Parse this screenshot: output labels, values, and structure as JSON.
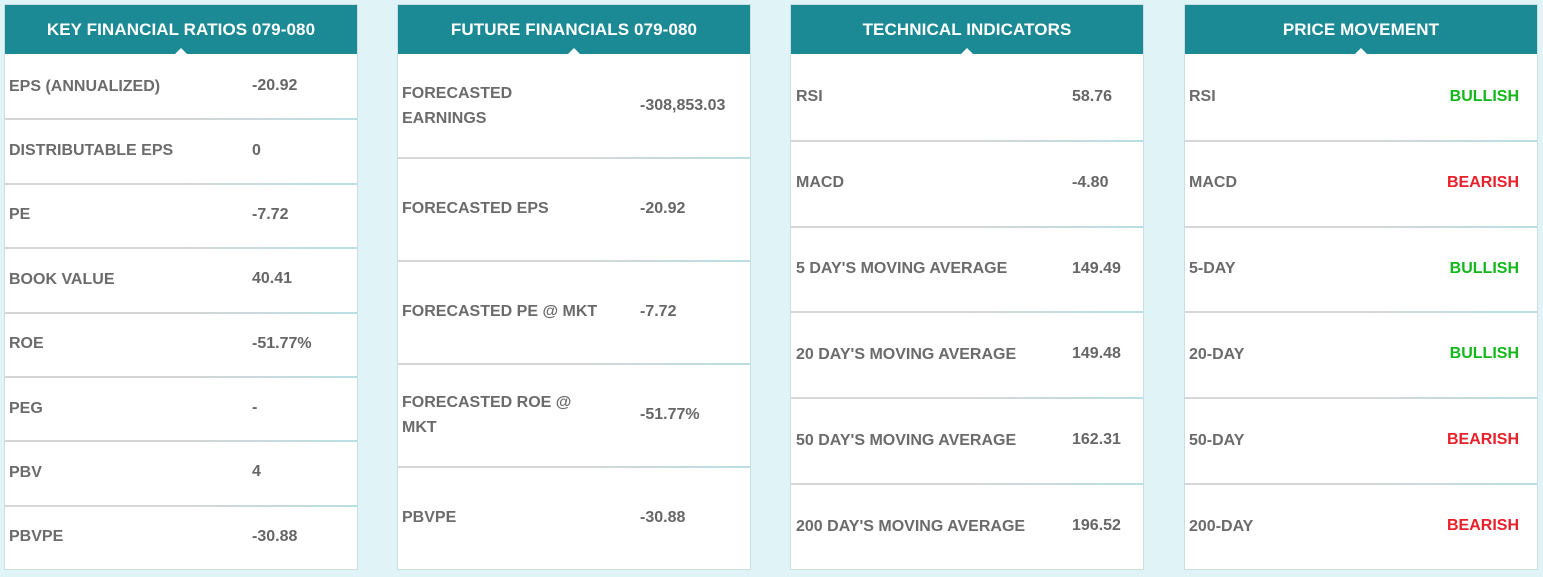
{
  "colors": {
    "header_bg": "#1c8a95",
    "bullish": "#12b81a",
    "bearish": "#e8202a",
    "page_bg": "#e0f3f6"
  },
  "key_ratios": {
    "title": "KEY FINANCIAL RATIOS 079-080",
    "rows": [
      {
        "label": "EPS (ANNUALIZED)",
        "value": "-20.92"
      },
      {
        "label": "DISTRIBUTABLE EPS",
        "value": "0"
      },
      {
        "label": "PE",
        "value": "-7.72"
      },
      {
        "label": "BOOK VALUE",
        "value": "40.41"
      },
      {
        "label": "ROE",
        "value": "-51.77%"
      },
      {
        "label": "PEG",
        "value": "-"
      },
      {
        "label": "PBV",
        "value": "4"
      },
      {
        "label": "PBVPE",
        "value": "-30.88"
      }
    ]
  },
  "future_financials": {
    "title": "FUTURE FINANCIALS 079-080",
    "rows": [
      {
        "label": "FORECASTED EARNINGS",
        "value": "-308,853.03"
      },
      {
        "label": "FORECASTED EPS",
        "value": "-20.92"
      },
      {
        "label": "FORECASTED PE @ MKT",
        "value": "-7.72"
      },
      {
        "label": "FORECASTED ROE @ MKT",
        "value": "-51.77%"
      },
      {
        "label": "PBVPE",
        "value": "-30.88"
      }
    ]
  },
  "technical_indicators": {
    "title": "TECHNICAL INDICATORS",
    "rows": [
      {
        "label": "RSI",
        "value": "58.76"
      },
      {
        "label": "MACD",
        "value": "-4.80"
      },
      {
        "label": "5 DAY'S MOVING AVERAGE",
        "value": "149.49"
      },
      {
        "label": "20 DAY'S MOVING AVERAGE",
        "value": "149.48"
      },
      {
        "label": "50 DAY'S MOVING AVERAGE",
        "value": "162.31"
      },
      {
        "label": "200 DAY'S MOVING AVERAGE",
        "value": "196.52"
      }
    ]
  },
  "price_movement": {
    "title": "PRICE MOVEMENT",
    "rows": [
      {
        "label": "RSI",
        "signal": "BULLISH"
      },
      {
        "label": "MACD",
        "signal": "BEARISH"
      },
      {
        "label": "5-DAY",
        "signal": "BULLISH"
      },
      {
        "label": "20-DAY",
        "signal": "BULLISH"
      },
      {
        "label": "50-DAY",
        "signal": "BEARISH"
      },
      {
        "label": "200-DAY",
        "signal": "BEARISH"
      }
    ]
  }
}
